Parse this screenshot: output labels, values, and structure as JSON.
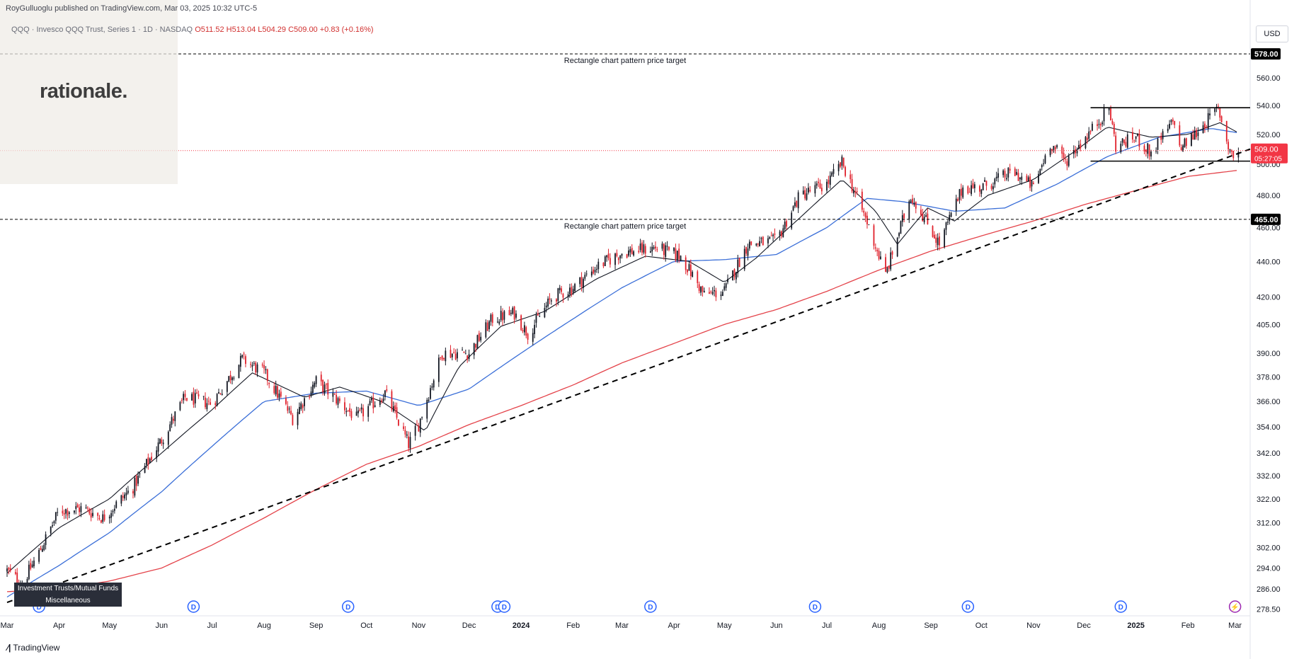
{
  "header": {
    "publisher": "RoyGulluoglu published on TradingView.com, Mar 03, 2025 10:32 UTC-5"
  },
  "legend": {
    "symbol": "QQQ · Invesco QQQ Trust, Series 1 · 1D · NASDAQ",
    "ohlc": "O511.52 H513.04 L504.29 C509.00 +0.83 (+0.16%)"
  },
  "logo": {
    "text": "rationale."
  },
  "currency": "USD",
  "badges": [
    "Investment Trusts/Mutual Funds",
    "Miscellaneous"
  ],
  "footer": {
    "icon": "tv-logo-icon",
    "text": "TradingView"
  },
  "colors": {
    "up": "#131722",
    "down": "#e0202b",
    "ema_short": "#131722",
    "sma_mid": "#3b6fd8",
    "sma_long": "#e4434a",
    "price_label": "#f23645"
  },
  "chart_data": {
    "type": "candlestick",
    "x_range": [
      "2023-03-01",
      "2025-03-10"
    ],
    "y_scale": "log",
    "y_range": [
      276.1,
      609
    ],
    "y_ticks": [
      278.5,
      286.0,
      294.0,
      302.0,
      312.0,
      322.0,
      332.0,
      342.0,
      354.0,
      366.0,
      378.0,
      390.0,
      405.0,
      420.0,
      440.0,
      460.0,
      480.0,
      500.0,
      520.0,
      540.0,
      560.0
    ],
    "x_ticks": [
      {
        "date": "2023-03-01",
        "label": "Mar"
      },
      {
        "date": "2023-04-01",
        "label": "Apr"
      },
      {
        "date": "2023-05-01",
        "label": "May"
      },
      {
        "date": "2023-06-01",
        "label": "Jun"
      },
      {
        "date": "2023-07-01",
        "label": "Jul"
      },
      {
        "date": "2023-08-01",
        "label": "Aug"
      },
      {
        "date": "2023-09-01",
        "label": "Sep"
      },
      {
        "date": "2023-10-01",
        "label": "Oct"
      },
      {
        "date": "2023-11-01",
        "label": "Nov"
      },
      {
        "date": "2023-12-01",
        "label": "Dec"
      },
      {
        "date": "2024-01-01",
        "label": "2024",
        "bold": true
      },
      {
        "date": "2024-02-01",
        "label": "Feb"
      },
      {
        "date": "2024-03-01",
        "label": "Mar"
      },
      {
        "date": "2024-04-01",
        "label": "Apr"
      },
      {
        "date": "2024-05-01",
        "label": "May"
      },
      {
        "date": "2024-06-01",
        "label": "Jun"
      },
      {
        "date": "2024-07-01",
        "label": "Jul"
      },
      {
        "date": "2024-08-01",
        "label": "Aug"
      },
      {
        "date": "2024-09-01",
        "label": "Sep"
      },
      {
        "date": "2024-10-01",
        "label": "Oct"
      },
      {
        "date": "2024-11-01",
        "label": "Nov"
      },
      {
        "date": "2024-12-01",
        "label": "Dec"
      },
      {
        "date": "2025-01-01",
        "label": "2025",
        "bold": true
      },
      {
        "date": "2025-02-01",
        "label": "Feb"
      },
      {
        "date": "2025-03-01",
        "label": "Mar"
      }
    ],
    "price_path": [
      [
        "2023-03-01",
        293
      ],
      [
        "2023-03-10",
        288
      ],
      [
        "2023-03-20",
        300
      ],
      [
        "2023-04-01",
        317
      ],
      [
        "2023-04-15",
        318
      ],
      [
        "2023-04-27",
        314
      ],
      [
        "2023-05-15",
        327
      ],
      [
        "2023-06-01",
        348
      ],
      [
        "2023-06-15",
        368
      ],
      [
        "2023-07-01",
        365
      ],
      [
        "2023-07-19",
        387
      ],
      [
        "2023-08-01",
        380
      ],
      [
        "2023-08-18",
        358
      ],
      [
        "2023-09-01",
        376
      ],
      [
        "2023-09-25",
        358
      ],
      [
        "2023-10-12",
        370
      ],
      [
        "2023-10-26",
        346
      ],
      [
        "2023-11-01",
        355
      ],
      [
        "2023-11-15",
        390
      ],
      [
        "2023-12-01",
        390
      ],
      [
        "2023-12-15",
        408
      ],
      [
        "2023-12-28",
        411
      ],
      [
        "2024-01-05",
        400
      ],
      [
        "2024-01-20",
        420
      ],
      [
        "2024-02-01",
        425
      ],
      [
        "2024-02-15",
        437
      ],
      [
        "2024-03-01",
        445
      ],
      [
        "2024-03-21",
        448
      ],
      [
        "2024-04-05",
        443
      ],
      [
        "2024-04-19",
        421
      ],
      [
        "2024-05-01",
        423
      ],
      [
        "2024-05-15",
        450
      ],
      [
        "2024-06-01",
        452
      ],
      [
        "2024-06-15",
        480
      ],
      [
        "2024-07-01",
        487
      ],
      [
        "2024-07-10",
        501
      ],
      [
        "2024-07-25",
        463
      ],
      [
        "2024-08-05",
        432
      ],
      [
        "2024-08-20",
        480
      ],
      [
        "2024-09-06",
        450
      ],
      [
        "2024-09-20",
        485
      ],
      [
        "2024-10-01",
        485
      ],
      [
        "2024-10-20",
        495
      ],
      [
        "2024-11-01",
        485
      ],
      [
        "2024-11-11",
        514
      ],
      [
        "2024-11-20",
        502
      ],
      [
        "2024-12-05",
        522
      ],
      [
        "2024-12-16",
        538
      ],
      [
        "2024-12-20",
        512
      ],
      [
        "2025-01-01",
        518
      ],
      [
        "2025-01-10",
        507
      ],
      [
        "2025-01-24",
        530
      ],
      [
        "2025-01-27",
        510
      ],
      [
        "2025-02-05",
        520
      ],
      [
        "2025-02-19",
        538
      ],
      [
        "2025-02-25",
        512
      ],
      [
        "2025-02-28",
        505
      ],
      [
        "2025-03-03",
        509
      ]
    ],
    "ema_short_path": [
      [
        "2023-03-01",
        292
      ],
      [
        "2023-04-01",
        310
      ],
      [
        "2023-05-01",
        322
      ],
      [
        "2023-06-01",
        342
      ],
      [
        "2023-07-01",
        362
      ],
      [
        "2023-07-25",
        380
      ],
      [
        "2023-08-25",
        368
      ],
      [
        "2023-09-15",
        373
      ],
      [
        "2023-10-10",
        366
      ],
      [
        "2023-11-05",
        352
      ],
      [
        "2023-11-25",
        383
      ],
      [
        "2023-12-20",
        404
      ],
      [
        "2024-01-15",
        412
      ],
      [
        "2024-02-15",
        430
      ],
      [
        "2024-03-15",
        443
      ],
      [
        "2024-04-10",
        440
      ],
      [
        "2024-05-01",
        428
      ],
      [
        "2024-05-20",
        442
      ],
      [
        "2024-06-15",
        466
      ],
      [
        "2024-07-10",
        490
      ],
      [
        "2024-07-30",
        470
      ],
      [
        "2024-08-12",
        450
      ],
      [
        "2024-08-30",
        472
      ],
      [
        "2024-09-15",
        464
      ],
      [
        "2024-10-05",
        480
      ],
      [
        "2024-11-01",
        490
      ],
      [
        "2024-11-25",
        508
      ],
      [
        "2024-12-15",
        525
      ],
      [
        "2025-01-10",
        518
      ],
      [
        "2025-02-01",
        520
      ],
      [
        "2025-02-20",
        528
      ],
      [
        "2025-03-03",
        521
      ]
    ],
    "sma_mid_path": [
      [
        "2023-03-01",
        283
      ],
      [
        "2023-04-01",
        295
      ],
      [
        "2023-05-01",
        308
      ],
      [
        "2023-06-01",
        325
      ],
      [
        "2023-07-01",
        345
      ],
      [
        "2023-08-01",
        366
      ],
      [
        "2023-09-01",
        370
      ],
      [
        "2023-10-01",
        371
      ],
      [
        "2023-11-01",
        364
      ],
      [
        "2023-12-01",
        372
      ],
      [
        "2024-01-01",
        390
      ],
      [
        "2024-02-01",
        408
      ],
      [
        "2024-03-01",
        425
      ],
      [
        "2024-04-01",
        440
      ],
      [
        "2024-05-01",
        441
      ],
      [
        "2024-06-01",
        444
      ],
      [
        "2024-07-01",
        460
      ],
      [
        "2024-07-25",
        478
      ],
      [
        "2024-08-15",
        476
      ],
      [
        "2024-09-15",
        470
      ],
      [
        "2024-10-15",
        472
      ],
      [
        "2024-11-15",
        487
      ],
      [
        "2024-12-15",
        505
      ],
      [
        "2025-01-15",
        518
      ],
      [
        "2025-02-15",
        524
      ],
      [
        "2025-03-03",
        521
      ]
    ],
    "sma_long_path": [
      [
        "2023-03-01",
        285
      ],
      [
        "2023-04-01",
        286
      ],
      [
        "2023-05-01",
        289
      ],
      [
        "2023-06-01",
        294
      ],
      [
        "2023-07-01",
        303
      ],
      [
        "2023-08-01",
        314
      ],
      [
        "2023-09-01",
        326
      ],
      [
        "2023-10-01",
        337
      ],
      [
        "2023-11-01",
        345
      ],
      [
        "2023-12-01",
        355
      ],
      [
        "2024-01-01",
        364
      ],
      [
        "2024-02-01",
        374
      ],
      [
        "2024-03-01",
        385
      ],
      [
        "2024-04-01",
        395
      ],
      [
        "2024-05-01",
        405
      ],
      [
        "2024-06-01",
        413
      ],
      [
        "2024-07-01",
        423
      ],
      [
        "2024-08-01",
        435
      ],
      [
        "2024-09-01",
        446
      ],
      [
        "2024-10-01",
        455
      ],
      [
        "2024-11-01",
        464
      ],
      [
        "2024-12-01",
        474
      ],
      [
        "2025-01-01",
        483
      ],
      [
        "2025-02-01",
        492
      ],
      [
        "2025-03-03",
        496
      ]
    ],
    "trendline": {
      "from": [
        "2023-03-01",
        281
      ],
      "to": [
        "2025-03-10",
        510
      ]
    },
    "rectangle": {
      "top": 538.5,
      "bottom": 502,
      "from": "2024-12-05",
      "to": "2025-03-10"
    },
    "targets": [
      {
        "price": 578.0,
        "label": "Rectangle chart pattern price target"
      },
      {
        "price": 465.0,
        "label": "Rectangle chart pattern price target"
      }
    ],
    "current_price": {
      "price": 509.0,
      "label": "509.00",
      "countdown": "05:27:05"
    },
    "price_labels": [
      {
        "price": 578.0,
        "label": "578.00"
      },
      {
        "price": 465.0,
        "label": "465.00"
      }
    ],
    "event_markers": [
      {
        "date": "2023-03-20",
        "label": "D"
      },
      {
        "date": "2023-06-20",
        "label": "D"
      },
      {
        "date": "2023-09-20",
        "label": "D"
      },
      {
        "date": "2023-12-18",
        "label": "D"
      },
      {
        "date": "2023-12-22",
        "label": "D"
      },
      {
        "date": "2024-03-18",
        "label": "D"
      },
      {
        "date": "2024-06-24",
        "label": "D"
      },
      {
        "date": "2024-09-23",
        "label": "D"
      },
      {
        "date": "2024-12-23",
        "label": "D"
      },
      {
        "date": "2025-03-01",
        "label": "⚡"
      }
    ]
  }
}
